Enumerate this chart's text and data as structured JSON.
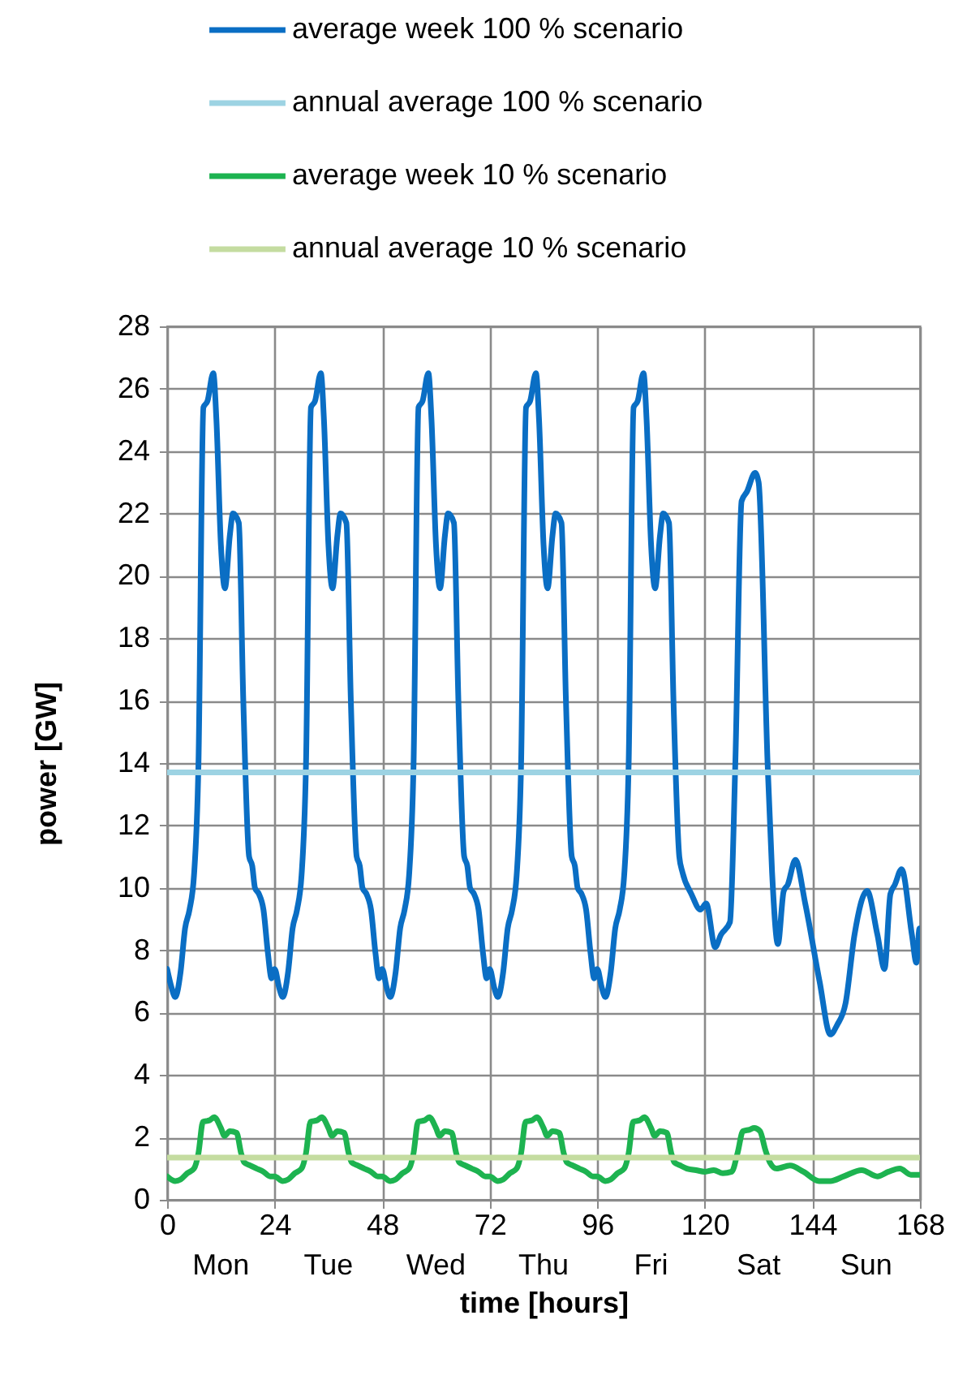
{
  "chart_data": {
    "type": "line",
    "xlabel": "time [hours]",
    "ylabel": "power [GW]",
    "xlim": [
      0,
      168
    ],
    "ylim": [
      0,
      28
    ],
    "xticks": [
      0,
      24,
      48,
      72,
      96,
      120,
      144,
      168
    ],
    "annotations": [
      "Mon",
      "Tue",
      "Wed",
      "Thu",
      "Fri",
      "Sat",
      "Sun"
    ],
    "yticks": [
      0,
      2,
      4,
      6,
      8,
      10,
      12,
      14,
      16,
      18,
      20,
      22,
      24,
      26,
      28
    ],
    "grid": true,
    "legend": "top",
    "series": [
      {
        "name": "average week  100 % scenario",
        "color": "#0a6ec4",
        "x": [
          0,
          1,
          1.8,
          3,
          4,
          5,
          6,
          7,
          8.1,
          9,
          10.3,
          11,
          12,
          12.9,
          14,
          14.7,
          16,
          17,
          18.3,
          19,
          19.6,
          20.5,
          21.5,
          22.5,
          23.3,
          24,
          25,
          25.8,
          27,
          28,
          29,
          30,
          31,
          32.1,
          33,
          34.3,
          35,
          36,
          36.9,
          38,
          38.7,
          40,
          41,
          42.3,
          43,
          43.6,
          44.5,
          45.5,
          46.5,
          47.3,
          48,
          49,
          49.8,
          51,
          52,
          53,
          54,
          55,
          56.1,
          57,
          58.3,
          59,
          60,
          60.9,
          62,
          62.7,
          64,
          65,
          66.3,
          67,
          67.6,
          68.5,
          69.5,
          70.5,
          71.3,
          72,
          73,
          73.8,
          75,
          76,
          77,
          78,
          79,
          80.1,
          81,
          82.3,
          83,
          84,
          84.9,
          86,
          86.7,
          88,
          89,
          90.3,
          91,
          91.6,
          92.5,
          93.5,
          94.5,
          95.3,
          96,
          97,
          97.8,
          99,
          100,
          101,
          102,
          103,
          104.1,
          105,
          106.3,
          107,
          108,
          108.9,
          110,
          110.7,
          112,
          113,
          114.3,
          115,
          117,
          119,
          120.3,
          122.3,
          123.6,
          125.6,
          126.8,
          128.2,
          129.4,
          131.2,
          132,
          134,
          135,
          136.3,
          137.6,
          138.5,
          140.2,
          142.4,
          145.6,
          148,
          149.5,
          151.4,
          153.4,
          156.2,
          158.5,
          160.1,
          161.4,
          162.4,
          163.9,
          166.2,
          167.2,
          167.9,
          168
        ],
        "values": [
          7.4,
          6.8,
          6.5,
          7.3,
          8.7,
          9.3,
          10.4,
          14,
          25.4,
          25.6,
          26.5,
          25,
          21,
          19.6,
          21.3,
          22,
          21.7,
          16,
          11,
          10.7,
          10,
          9.8,
          9.3,
          7.9,
          7.1,
          7.4,
          6.8,
          6.5,
          7.3,
          8.7,
          9.3,
          10.4,
          14,
          25.4,
          25.6,
          26.5,
          25,
          21,
          19.6,
          21.3,
          22,
          21.7,
          16,
          11,
          10.7,
          10,
          9.8,
          9.3,
          7.9,
          7.1,
          7.4,
          6.8,
          6.5,
          7.3,
          8.7,
          9.3,
          10.4,
          14,
          25.4,
          25.6,
          26.5,
          25,
          21,
          19.6,
          21.3,
          22,
          21.7,
          16,
          11,
          10.7,
          10,
          9.8,
          9.3,
          7.9,
          7.1,
          7.4,
          6.8,
          6.5,
          7.3,
          8.7,
          9.3,
          10.4,
          14,
          25.4,
          25.6,
          26.5,
          25,
          21,
          19.6,
          21.3,
          22,
          21.7,
          16,
          11,
          10.7,
          10,
          9.8,
          9.3,
          7.9,
          7.1,
          7.4,
          6.8,
          6.5,
          7.3,
          8.7,
          9.3,
          10.4,
          14,
          25.4,
          25.6,
          26.5,
          25,
          21,
          19.6,
          21.3,
          22,
          21.7,
          16,
          11,
          10.5,
          9.8,
          9.3,
          9.5,
          8.1,
          8.5,
          8.9,
          14,
          22.4,
          22.7,
          23.3,
          23,
          14,
          10.5,
          8.2,
          9.9,
          10.1,
          10.9,
          9.5,
          7,
          5.3,
          5.6,
          6.3,
          8.5,
          9.9,
          8.5,
          7.4,
          9.8,
          10.1,
          10.6,
          8.5,
          7.6,
          8.7,
          7.9
        ]
      },
      {
        "name": "annual average 100 % scenario",
        "color": "#9dd3e3",
        "x": [
          0,
          168
        ],
        "values": [
          13.7,
          13.7
        ]
      },
      {
        "name": "average week  10 % scenario",
        "color": "#1db350",
        "x": [
          0,
          1.8,
          3,
          4.5,
          6,
          7,
          8,
          9.5,
          10.5,
          12,
          12.8,
          14,
          15.5,
          16.5,
          17.2,
          18.5,
          20,
          21.5,
          23,
          24,
          25.8,
          27,
          28.5,
          30,
          31,
          32,
          33.5,
          34.5,
          36,
          36.8,
          38,
          39.5,
          40.5,
          41.2,
          42.5,
          44,
          45.5,
          47,
          48,
          49.8,
          51,
          52.5,
          54,
          55,
          56,
          57.5,
          58.5,
          60,
          60.8,
          62,
          63.5,
          64.5,
          65.2,
          66.5,
          68,
          69.5,
          71,
          72,
          73.8,
          75,
          76.5,
          78,
          79,
          80,
          81.5,
          82.5,
          84,
          84.8,
          86,
          87.5,
          88.5,
          89.2,
          90.5,
          92,
          93.5,
          95,
          96,
          97.8,
          99,
          100.5,
          102,
          103,
          104,
          105.5,
          106.5,
          108,
          108.8,
          110,
          111.5,
          112.5,
          113.2,
          114.5,
          116,
          118,
          120,
          122,
          124,
          126,
          127.3,
          128.5,
          130,
          131,
          132.3,
          133.5,
          134.5,
          136,
          139,
          142,
          145.5,
          148,
          151,
          155,
          158.5,
          161,
          163.5,
          166,
          168
        ],
        "values": [
          0.75,
          0.6,
          0.65,
          0.85,
          1,
          1.5,
          2.5,
          2.55,
          2.65,
          2.3,
          2.05,
          2.2,
          2.15,
          1.5,
          1.2,
          1.1,
          1,
          0.9,
          0.75,
          0.75,
          0.6,
          0.65,
          0.85,
          1,
          1.5,
          2.5,
          2.55,
          2.65,
          2.3,
          2.05,
          2.2,
          2.15,
          1.5,
          1.2,
          1.1,
          1,
          0.9,
          0.75,
          0.75,
          0.6,
          0.65,
          0.85,
          1,
          1.5,
          2.5,
          2.55,
          2.65,
          2.3,
          2.05,
          2.2,
          2.15,
          1.5,
          1.2,
          1.1,
          1,
          0.9,
          0.75,
          0.75,
          0.6,
          0.65,
          0.85,
          1,
          1.5,
          2.5,
          2.55,
          2.65,
          2.3,
          2.05,
          2.2,
          2.15,
          1.5,
          1.2,
          1.1,
          1,
          0.9,
          0.75,
          0.75,
          0.6,
          0.65,
          0.85,
          1,
          1.5,
          2.5,
          2.55,
          2.65,
          2.3,
          2.05,
          2.2,
          2.15,
          1.5,
          1.2,
          1.1,
          1,
          0.95,
          0.9,
          0.95,
          0.85,
          0.9,
          1.5,
          2.2,
          2.25,
          2.3,
          2.2,
          1.6,
          1.2,
          1,
          1.1,
          0.9,
          0.6,
          0.6,
          0.75,
          0.95,
          0.75,
          0.9,
          1,
          0.8,
          0.8
        ]
      },
      {
        "name": "annual average 10 % scenario",
        "color": "#c4dca0",
        "x": [
          0,
          168
        ],
        "values": [
          1.35,
          1.35
        ]
      }
    ]
  }
}
